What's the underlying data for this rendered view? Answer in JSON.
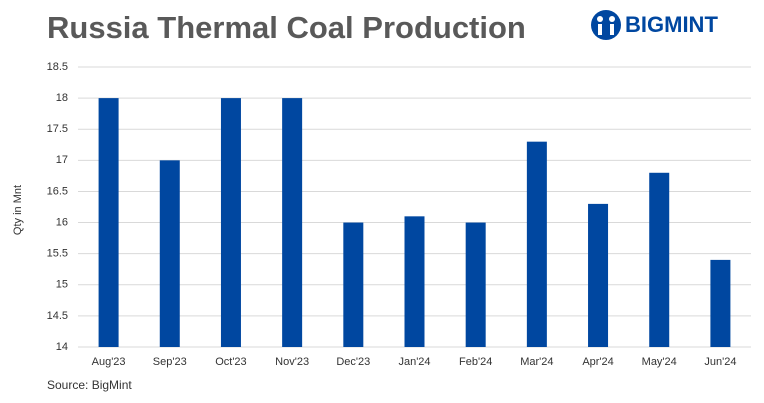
{
  "chart_data": {
    "type": "bar",
    "title": "Russia Thermal Coal Production",
    "brand": "BIGMINT",
    "y_label": "Qty in Mnt",
    "source": "Source: BigMint",
    "categories": [
      "Aug'23",
      "Sep'23",
      "Oct'23",
      "Nov'23",
      "Dec'23",
      "Jan'24",
      "Feb'24",
      "Mar'24",
      "Apr'24",
      "May'24",
      "Jun'24"
    ],
    "values": [
      18,
      17,
      18,
      18,
      16,
      16.1,
      16,
      17.3,
      16.3,
      16.8,
      15.4
    ],
    "color": "#0047a0",
    "ylim": [
      14,
      18.5
    ],
    "yticks": [
      14,
      14.5,
      15,
      15.5,
      16,
      16.5,
      17,
      17.5,
      18,
      18.5
    ],
    "grid": true
  }
}
